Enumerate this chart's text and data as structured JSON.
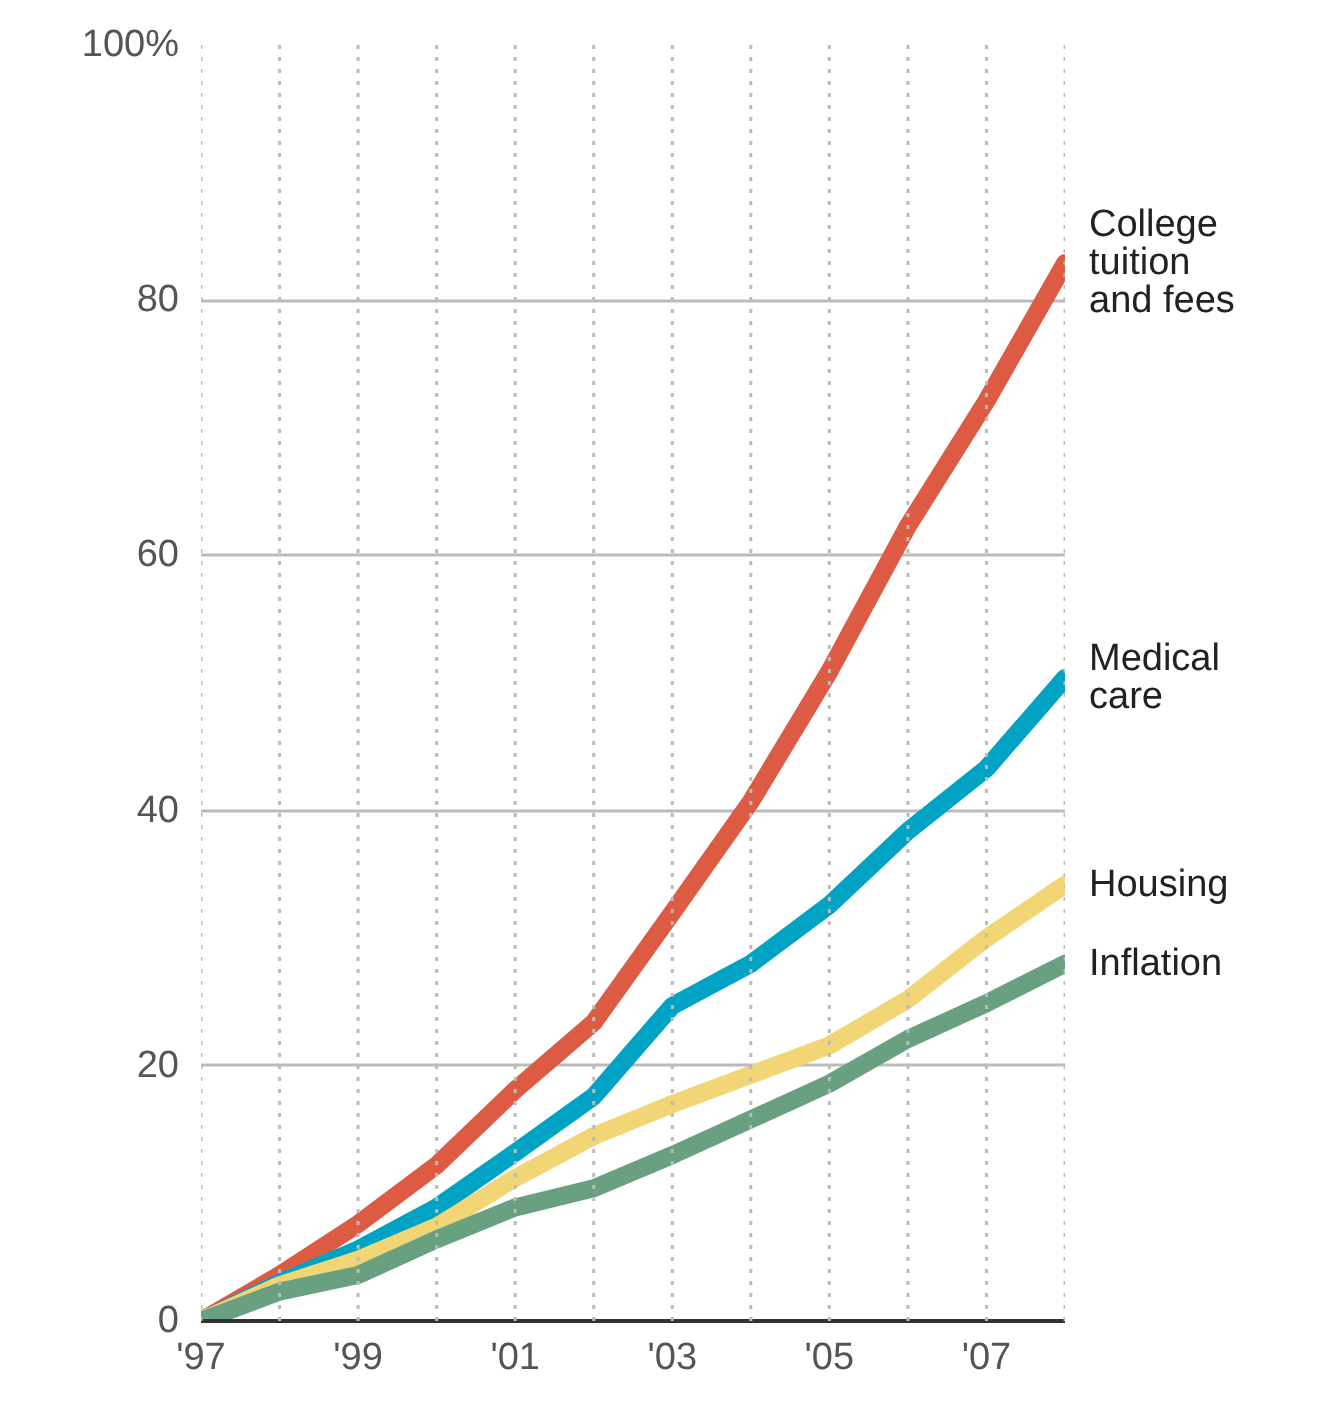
{
  "chart_data": {
    "type": "line",
    "x": [
      1997,
      1998,
      1999,
      2000,
      2001,
      2002,
      2003,
      2004,
      2005,
      2006,
      2007,
      2008
    ],
    "series": [
      {
        "name": "College tuition and fees",
        "color": "#dd5a43",
        "values": [
          0,
          3.6,
          7.6,
          12.2,
          18.1,
          23.4,
          32,
          40.7,
          50.9,
          62.3,
          72.1,
          82.9
        ]
      },
      {
        "name": "Medical care",
        "color": "#00a3c4",
        "values": [
          0,
          3,
          5.6,
          8.9,
          13.2,
          17.6,
          24.7,
          28,
          32.6,
          38.4,
          43.3,
          50.4
        ]
      },
      {
        "name": "Housing",
        "color": "#f2d675",
        "values": [
          0,
          2.8,
          4.8,
          7.4,
          11.2,
          14.5,
          17,
          19.3,
          21.6,
          25.2,
          30,
          34.2
        ]
      },
      {
        "name": "Inflation",
        "color": "#69a080",
        "values": [
          0,
          2.3,
          3.6,
          6.4,
          8.9,
          10.4,
          13,
          15.8,
          18.6,
          22.1,
          24.9,
          28
        ]
      }
    ],
    "xlim": [
      1997,
      2008
    ],
    "xticks": [
      {
        "value": 1997,
        "label": "'97"
      },
      {
        "value": 1998,
        "label": null
      },
      {
        "value": 1999,
        "label": "'99"
      },
      {
        "value": 2000,
        "label": null
      },
      {
        "value": 2001,
        "label": "'01"
      },
      {
        "value": 2002,
        "label": null
      },
      {
        "value": 2003,
        "label": "'03"
      },
      {
        "value": 2004,
        "label": null
      },
      {
        "value": 2005,
        "label": "'05"
      },
      {
        "value": 2006,
        "label": null
      },
      {
        "value": 2007,
        "label": "'07"
      },
      {
        "value": 2008,
        "label": null
      }
    ],
    "ylim": [
      0,
      100
    ],
    "yticks": [
      0,
      20,
      40,
      60,
      80,
      {
        "value": 100,
        "label": "100%"
      }
    ],
    "grid": true,
    "marker": "none",
    "line_style": "solid"
  }
}
